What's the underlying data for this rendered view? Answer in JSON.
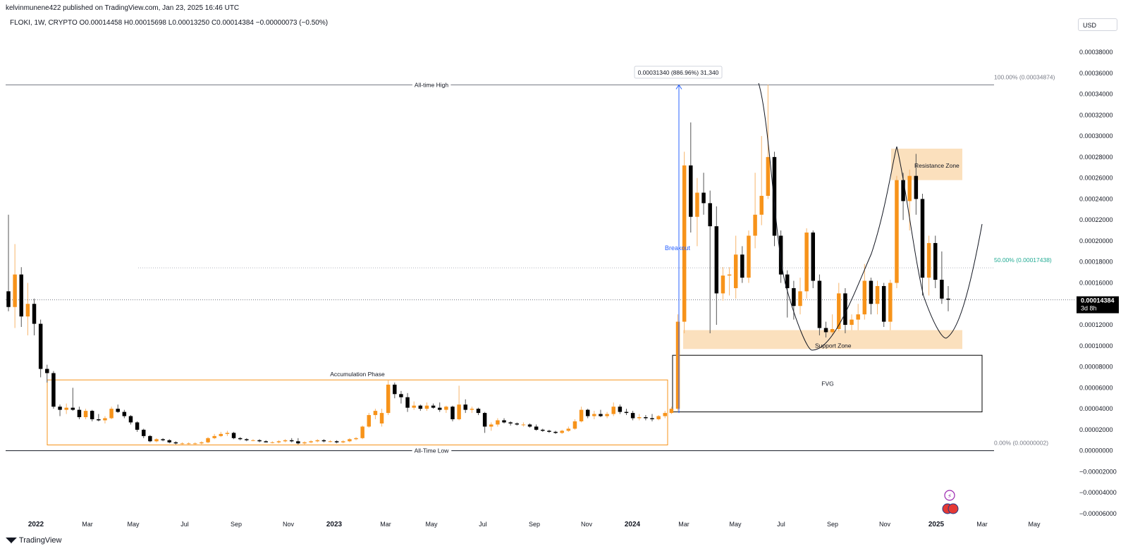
{
  "header": {
    "published": "kelvinmunene422 published on TradingView.com, Jan 23, 2025 16:46 UTC"
  },
  "legend": {
    "text": "FLOKI, 1W, CRYPTO  O0.00014458  H0.00015698  L0.00013250  C0.00014384  −0.00000073 (−0.50%)"
  },
  "currency": "USD",
  "branding": "TradingView",
  "colors": {
    "up": "#f7931a",
    "down": "#000000",
    "zone": "#fbe0bd",
    "green": "#22ab94",
    "blue": "#2962ff",
    "grid": "#e9ebef"
  },
  "price_label": {
    "value": "0.00014384",
    "countdown": "3d 8h"
  },
  "measure_label": "0.00031340 (886.96%) 31,340",
  "annotations": {
    "ath": "All-time High",
    "atl": "All-Time Low",
    "accumulation": "Accumulation Phase",
    "breakout": "Breakout",
    "resistance": "Resistance Zone",
    "support": "Support Zone",
    "fvg": "FVG",
    "fib100": "100.00% (0.00034874)",
    "fib50": "50.00% (0.00017438)",
    "fib0": "0.00% (0.00000002)"
  },
  "chart_data": {
    "type": "candlestick",
    "y_axis_ticks": [
      "0.00038000",
      "0.00036000",
      "0.00034000",
      "0.00032000",
      "0.00030000",
      "0.00028000",
      "0.00026000",
      "0.00024000",
      "0.00022000",
      "0.00020000",
      "0.00018000",
      "0.00016000",
      "0.00014000",
      "0.00012000",
      "0.00010000",
      "0.00008000",
      "0.00006000",
      "0.00004000",
      "0.00002000",
      "0.00000000",
      "−0.00002000",
      "−0.00004000",
      "−0.00006000"
    ],
    "ylim": [
      -6e-05,
      0.00038
    ],
    "x_axis_labels": [
      "2022",
      "Mar",
      "May",
      "Jul",
      "Sep",
      "Nov",
      "2023",
      "Mar",
      "May",
      "Jul",
      "Sep",
      "Nov",
      "2024",
      "Mar",
      "May",
      "Jul",
      "Sep",
      "Nov",
      "2025",
      "Mar",
      "May"
    ],
    "bold_x_labels": [
      "2022",
      "2023",
      "2024",
      "2025"
    ],
    "levels": {
      "all_time_high": 0.00034874,
      "all_time_low": 2e-08,
      "fib_50": 0.00017438,
      "current": 0.00014384
    },
    "zones": {
      "resistance": [
        0.000258,
        0.000288
      ],
      "support": [
        9.7e-05,
        0.000115
      ],
      "fvg": [
        3.7e-05,
        9.1e-05
      ],
      "accumulation": [
        5.5e-06,
        6.75e-05
      ]
    },
    "candles": [
      {
        "o": 0.000152,
        "h": 0.000225,
        "l": 0.000133,
        "c": 0.000137
      },
      {
        "o": 0.000137,
        "h": 0.000197,
        "l": 0.000117,
        "c": 0.000168
      },
      {
        "o": 0.000168,
        "h": 0.000175,
        "l": 0.000118,
        "c": 0.000128
      },
      {
        "o": 0.000128,
        "h": 0.00016,
        "l": 0.00011,
        "c": 0.00014
      },
      {
        "o": 0.00014,
        "h": 0.000145,
        "l": 0.00011,
        "c": 0.000121
      },
      {
        "o": 0.000121,
        "h": 0.000125,
        "l": 7e-05,
        "c": 7.8e-05
      },
      {
        "o": 7.8e-05,
        "h": 8.2e-05,
        "l": 6.5e-05,
        "c": 7.4e-05
      },
      {
        "o": 7.4e-05,
        "h": 7.6e-05,
        "l": 4e-05,
        "c": 4.2e-05
      },
      {
        "o": 4.2e-05,
        "h": 4.4e-05,
        "l": 3.3e-05,
        "c": 3.9e-05
      },
      {
        "o": 3.9e-05,
        "h": 4.5e-05,
        "l": 3.5e-05,
        "c": 4.1e-05
      },
      {
        "o": 4.1e-05,
        "h": 6e-05,
        "l": 3.8e-05,
        "c": 3.9e-05
      },
      {
        "o": 3.9e-05,
        "h": 4.2e-05,
        "l": 3e-05,
        "c": 3.2e-05
      },
      {
        "o": 3.2e-05,
        "h": 4e-05,
        "l": 3e-05,
        "c": 3.8e-05
      },
      {
        "o": 3.8e-05,
        "h": 3.9e-05,
        "l": 2.8e-05,
        "c": 3e-05
      },
      {
        "o": 3e-05,
        "h": 3.5e-05,
        "l": 2.8e-05,
        "c": 2.9e-05
      },
      {
        "o": 2.9e-05,
        "h": 3.3e-05,
        "l": 2.6e-05,
        "c": 3.1e-05
      },
      {
        "o": 3.1e-05,
        "h": 4.2e-05,
        "l": 3e-05,
        "c": 4e-05
      },
      {
        "o": 4e-05,
        "h": 4.4e-05,
        "l": 3.6e-05,
        "c": 3.7e-05
      },
      {
        "o": 3.7e-05,
        "h": 3.9e-05,
        "l": 3.1e-05,
        "c": 3.3e-05
      },
      {
        "o": 3.3e-05,
        "h": 3.4e-05,
        "l": 2.5e-05,
        "c": 2.7e-05
      },
      {
        "o": 2.7e-05,
        "h": 2.8e-05,
        "l": 1.8e-05,
        "c": 2e-05
      },
      {
        "o": 2e-05,
        "h": 2.1e-05,
        "l": 1.2e-05,
        "c": 1.4e-05
      },
      {
        "o": 1.4e-05,
        "h": 1.5e-05,
        "l": 8e-06,
        "c": 9e-06
      },
      {
        "o": 9e-06,
        "h": 1.2e-05,
        "l": 8e-06,
        "c": 1.1e-05
      },
      {
        "o": 1.1e-05,
        "h": 1.2e-05,
        "l": 9e-06,
        "c": 1e-05
      },
      {
        "o": 1e-05,
        "h": 1.1e-05,
        "l": 7e-06,
        "c": 8e-06
      },
      {
        "o": 8e-06,
        "h": 9e-06,
        "l": 6e-06,
        "c": 7e-06
      },
      {
        "o": 7e-06,
        "h": 8e-06,
        "l": 6e-06,
        "c": 7e-06
      },
      {
        "o": 7e-06,
        "h": 8e-06,
        "l": 6e-06,
        "c": 7e-06
      },
      {
        "o": 7e-06,
        "h": 8e-06,
        "l": 6e-06,
        "c": 7e-06
      },
      {
        "o": 7e-06,
        "h": 9e-06,
        "l": 6e-06,
        "c": 8e-06
      },
      {
        "o": 8e-06,
        "h": 1.3e-05,
        "l": 7e-06,
        "c": 1.2e-05
      },
      {
        "o": 1.2e-05,
        "h": 1.6e-05,
        "l": 1.1e-05,
        "c": 1.4e-05
      },
      {
        "o": 1.4e-05,
        "h": 1.8e-05,
        "l": 1.3e-05,
        "c": 1.6e-05
      },
      {
        "o": 1.6e-05,
        "h": 1.9e-05,
        "l": 1.4e-05,
        "c": 1.7e-05
      },
      {
        "o": 1.7e-05,
        "h": 1.8e-05,
        "l": 1.1e-05,
        "c": 1.2e-05
      },
      {
        "o": 1.2e-05,
        "h": 1.3e-05,
        "l": 1e-05,
        "c": 1.1e-05
      },
      {
        "o": 1.1e-05,
        "h": 1.2e-05,
        "l": 9e-06,
        "c": 1e-05
      },
      {
        "o": 1e-05,
        "h": 1.1e-05,
        "l": 9e-06,
        "c": 1e-05
      },
      {
        "o": 1e-05,
        "h": 1.1e-05,
        "l": 8e-06,
        "c": 9e-06
      },
      {
        "o": 9e-06,
        "h": 1e-05,
        "l": 8e-06,
        "c": 8e-06
      },
      {
        "o": 8e-06,
        "h": 9e-06,
        "l": 7e-06,
        "c": 8e-06
      },
      {
        "o": 8e-06,
        "h": 1e-05,
        "l": 7e-06,
        "c": 9e-06
      },
      {
        "o": 9e-06,
        "h": 1.1e-05,
        "l": 8e-06,
        "c": 1e-05
      },
      {
        "o": 1e-05,
        "h": 1.2e-05,
        "l": 8e-06,
        "c": 9e-06
      },
      {
        "o": 9e-06,
        "h": 1.2e-05,
        "l": 6e-06,
        "c": 7e-06
      },
      {
        "o": 7e-06,
        "h": 9e-06,
        "l": 6e-06,
        "c": 8e-06
      },
      {
        "o": 8e-06,
        "h": 1e-05,
        "l": 7e-06,
        "c": 9e-06
      },
      {
        "o": 9e-06,
        "h": 1.1e-05,
        "l": 8e-06,
        "c": 1e-05
      },
      {
        "o": 1e-05,
        "h": 1.1e-05,
        "l": 8e-06,
        "c": 9e-06
      },
      {
        "o": 9e-06,
        "h": 1e-05,
        "l": 8e-06,
        "c": 9e-06
      },
      {
        "o": 9e-06,
        "h": 1e-05,
        "l": 7e-06,
        "c": 8e-06
      },
      {
        "o": 8e-06,
        "h": 1e-05,
        "l": 7e-06,
        "c": 9e-06
      },
      {
        "o": 9e-06,
        "h": 1.2e-05,
        "l": 8e-06,
        "c": 1.1e-05
      },
      {
        "o": 1.1e-05,
        "h": 1.3e-05,
        "l": 1e-05,
        "c": 1.2e-05
      },
      {
        "o": 1.2e-05,
        "h": 2.4e-05,
        "l": 1.1e-05,
        "c": 2.3e-05
      },
      {
        "o": 2.3e-05,
        "h": 3.6e-05,
        "l": 2.2e-05,
        "c": 3.4e-05
      },
      {
        "o": 3.4e-05,
        "h": 4e-05,
        "l": 3e-05,
        "c": 3.8e-05
      },
      {
        "o": 2.6e-05,
        "h": 4e-05,
        "l": 2.3e-05,
        "c": 3.6e-05
      },
      {
        "o": 3.6e-05,
        "h": 6.7e-05,
        "l": 3.4e-05,
        "c": 6.3e-05
      },
      {
        "o": 6.3e-05,
        "h": 6.5e-05,
        "l": 5e-05,
        "c": 5.4e-05
      },
      {
        "o": 5.4e-05,
        "h": 5.7e-05,
        "l": 4.5e-05,
        "c": 5.1e-05
      },
      {
        "o": 5.1e-05,
        "h": 5.5e-05,
        "l": 3.7e-05,
        "c": 4.1e-05
      },
      {
        "o": 4.1e-05,
        "h": 4.7e-05,
        "l": 3.9e-05,
        "c": 4.3e-05
      },
      {
        "o": 4.3e-05,
        "h": 4.4e-05,
        "l": 3.8e-05,
        "c": 4e-05
      },
      {
        "o": 4e-05,
        "h": 4.6e-05,
        "l": 3.8e-05,
        "c": 4.3e-05
      },
      {
        "o": 4.3e-05,
        "h": 4.5e-05,
        "l": 4e-05,
        "c": 4.1e-05
      },
      {
        "o": 4.1e-05,
        "h": 4.6e-05,
        "l": 3.7e-05,
        "c": 3.9e-05
      },
      {
        "o": 3.9e-05,
        "h": 4.3e-05,
        "l": 3.6e-05,
        "c": 4.2e-05
      },
      {
        "o": 4.2e-05,
        "h": 4.3e-05,
        "l": 2.8e-05,
        "c": 3e-05
      },
      {
        "o": 3e-05,
        "h": 6.2e-05,
        "l": 2.9e-05,
        "c": 4.4e-05
      },
      {
        "o": 4.4e-05,
        "h": 4.9e-05,
        "l": 3.6e-05,
        "c": 3.9e-05
      },
      {
        "o": 3.9e-05,
        "h": 4.2e-05,
        "l": 3.6e-05,
        "c": 4e-05
      },
      {
        "o": 4e-05,
        "h": 4.1e-05,
        "l": 3.4e-05,
        "c": 3.6e-05
      },
      {
        "o": 3.6e-05,
        "h": 3.7e-05,
        "l": 1.7e-05,
        "c": 2.3e-05
      },
      {
        "o": 2.3e-05,
        "h": 2.7e-05,
        "l": 1.9e-05,
        "c": 2.5e-05
      },
      {
        "o": 2.5e-05,
        "h": 3.1e-05,
        "l": 2.3e-05,
        "c": 2.9e-05
      },
      {
        "o": 2.9e-05,
        "h": 3.1e-05,
        "l": 2.6e-05,
        "c": 2.7e-05
      },
      {
        "o": 2.7e-05,
        "h": 2.8e-05,
        "l": 2.4e-05,
        "c": 2.6e-05
      },
      {
        "o": 2.6e-05,
        "h": 2.7e-05,
        "l": 2.4e-05,
        "c": 2.5e-05
      },
      {
        "o": 2.5e-05,
        "h": 2.7e-05,
        "l": 2.3e-05,
        "c": 2.5e-05
      },
      {
        "o": 2.5e-05,
        "h": 2.6e-05,
        "l": 2.2e-05,
        "c": 2.3e-05
      },
      {
        "o": 2.3e-05,
        "h": 2.5e-05,
        "l": 1.9e-05,
        "c": 2e-05
      },
      {
        "o": 2e-05,
        "h": 2.1e-05,
        "l": 1.8e-05,
        "c": 1.9e-05
      },
      {
        "o": 1.9e-05,
        "h": 2e-05,
        "l": 1.7e-05,
        "c": 1.8e-05
      },
      {
        "o": 1.8e-05,
        "h": 1.9e-05,
        "l": 1.6e-05,
        "c": 1.7e-05
      },
      {
        "o": 1.7e-05,
        "h": 2e-05,
        "l": 1.6e-05,
        "c": 1.9e-05
      },
      {
        "o": 1.9e-05,
        "h": 2.3e-05,
        "l": 1.8e-05,
        "c": 2.1e-05
      },
      {
        "o": 2.1e-05,
        "h": 3e-05,
        "l": 2e-05,
        "c": 2.8e-05
      },
      {
        "o": 2.8e-05,
        "h": 4.2e-05,
        "l": 2.7e-05,
        "c": 3.9e-05
      },
      {
        "o": 3.9e-05,
        "h": 4e-05,
        "l": 3.1e-05,
        "c": 3.3e-05
      },
      {
        "o": 3.3e-05,
        "h": 3.8e-05,
        "l": 3e-05,
        "c": 3.5e-05
      },
      {
        "o": 3.5e-05,
        "h": 3.9e-05,
        "l": 3.2e-05,
        "c": 3.3e-05
      },
      {
        "o": 3.3e-05,
        "h": 3.7e-05,
        "l": 3.1e-05,
        "c": 3.5e-05
      },
      {
        "o": 3.5e-05,
        "h": 4.6e-05,
        "l": 3.3e-05,
        "c": 4.2e-05
      },
      {
        "o": 4.2e-05,
        "h": 4.4e-05,
        "l": 3.5e-05,
        "c": 3.7e-05
      },
      {
        "o": 3.7e-05,
        "h": 4e-05,
        "l": 3.4e-05,
        "c": 3.6e-05
      },
      {
        "o": 3.6e-05,
        "h": 3.8e-05,
        "l": 2.9e-05,
        "c": 3.1e-05
      },
      {
        "o": 3.1e-05,
        "h": 3.5e-05,
        "l": 2.9e-05,
        "c": 3.2e-05
      },
      {
        "o": 3.2e-05,
        "h": 3.4e-05,
        "l": 2.9e-05,
        "c": 3.1e-05
      },
      {
        "o": 3.1e-05,
        "h": 3.5e-05,
        "l": 2.8e-05,
        "c": 3e-05
      },
      {
        "o": 3e-05,
        "h": 3.4e-05,
        "l": 2.9e-05,
        "c": 3.3e-05
      },
      {
        "o": 3.3e-05,
        "h": 3.8e-05,
        "l": 3.1e-05,
        "c": 3.6e-05
      },
      {
        "o": 3.6e-05,
        "h": 4.2e-05,
        "l": 3.5e-05,
        "c": 4e-05
      },
      {
        "o": 4e-05,
        "h": 0.00013,
        "l": 3.8e-05,
        "c": 0.000123
      },
      {
        "o": 0.000123,
        "h": 0.000285,
        "l": 0.000112,
        "c": 0.000272
      },
      {
        "o": 0.000272,
        "h": 0.000313,
        "l": 0.000208,
        "c": 0.000223
      },
      {
        "o": 0.000223,
        "h": 0.00026,
        "l": 0.000195,
        "c": 0.000246
      },
      {
        "o": 0.000246,
        "h": 0.000265,
        "l": 0.000225,
        "c": 0.000236
      },
      {
        "o": 0.000236,
        "h": 0.000248,
        "l": 0.000112,
        "c": 0.000214
      },
      {
        "o": 0.000214,
        "h": 0.000233,
        "l": 0.00012,
        "c": 0.00015
      },
      {
        "o": 0.00015,
        "h": 0.000175,
        "l": 0.000143,
        "c": 0.000167
      },
      {
        "o": 0.000167,
        "h": 0.000175,
        "l": 0.000148,
        "c": 0.000168
      },
      {
        "o": 0.000155,
        "h": 0.000205,
        "l": 0.000145,
        "c": 0.000187
      },
      {
        "o": 0.000187,
        "h": 0.000195,
        "l": 0.00016,
        "c": 0.000165
      },
      {
        "o": 0.000165,
        "h": 0.00021,
        "l": 0.00016,
        "c": 0.000205
      },
      {
        "o": 0.000205,
        "h": 0.000265,
        "l": 0.000193,
        "c": 0.000225
      },
      {
        "o": 0.000225,
        "h": 0.0003,
        "l": 0.000215,
        "c": 0.000243
      },
      {
        "o": 0.000243,
        "h": 0.000349,
        "l": 0.00024,
        "c": 0.00028
      },
      {
        "o": 0.00028,
        "h": 0.000285,
        "l": 0.000195,
        "c": 0.000205
      },
      {
        "o": 0.000205,
        "h": 0.00021,
        "l": 0.00016,
        "c": 0.000168
      },
      {
        "o": 0.000168,
        "h": 0.000172,
        "l": 0.000127,
        "c": 0.000155
      },
      {
        "o": 0.000155,
        "h": 0.000162,
        "l": 0.000125,
        "c": 0.000138
      },
      {
        "o": 0.000138,
        "h": 0.000165,
        "l": 0.00013,
        "c": 0.000152
      },
      {
        "o": 0.000152,
        "h": 0.000212,
        "l": 0.000145,
        "c": 0.000208
      },
      {
        "o": 0.000208,
        "h": 0.00021,
        "l": 0.000155,
        "c": 0.000162
      },
      {
        "o": 0.000162,
        "h": 0.000168,
        "l": 0.00011,
        "c": 0.000117
      },
      {
        "o": 0.000117,
        "h": 0.000123,
        "l": 0.000108,
        "c": 0.000113
      },
      {
        "o": 0.000113,
        "h": 0.00013,
        "l": 0.00011,
        "c": 0.000116
      },
      {
        "o": 0.000116,
        "h": 0.00016,
        "l": 0.000114,
        "c": 0.00015
      },
      {
        "o": 0.00015,
        "h": 0.000155,
        "l": 0.000112,
        "c": 0.00012
      },
      {
        "o": 0.00012,
        "h": 0.00013,
        "l": 0.000115,
        "c": 0.000125
      },
      {
        "o": 0.000125,
        "h": 0.00014,
        "l": 0.000115,
        "c": 0.00013
      },
      {
        "o": 0.00013,
        "h": 0.000178,
        "l": 0.000125,
        "c": 0.000162
      },
      {
        "o": 0.000162,
        "h": 0.000165,
        "l": 0.00013,
        "c": 0.00014
      },
      {
        "o": 0.00014,
        "h": 0.000162,
        "l": 0.00013,
        "c": 0.000157
      },
      {
        "o": 0.000157,
        "h": 0.00016,
        "l": 0.000118,
        "c": 0.000123
      },
      {
        "o": 0.000123,
        "h": 0.000163,
        "l": 0.000115,
        "c": 0.00016
      },
      {
        "o": 0.00016,
        "h": 0.000262,
        "l": 0.000155,
        "c": 0.000258
      },
      {
        "o": 0.000258,
        "h": 0.000265,
        "l": 0.00022,
        "c": 0.000238
      },
      {
        "o": 0.000238,
        "h": 0.000268,
        "l": 0.00021,
        "c": 0.000262
      },
      {
        "o": 0.000262,
        "h": 0.000283,
        "l": 0.000225,
        "c": 0.00024
      },
      {
        "o": 0.00024,
        "h": 0.000245,
        "l": 0.000148,
        "c": 0.000165
      },
      {
        "o": 0.000165,
        "h": 0.000205,
        "l": 0.000148,
        "c": 0.000198
      },
      {
        "o": 0.000198,
        "h": 0.000205,
        "l": 0.000155,
        "c": 0.000163
      },
      {
        "o": 0.000163,
        "h": 0.00019,
        "l": 0.00014,
        "c": 0.000145
      },
      {
        "o": 0.000145,
        "h": 0.000157,
        "l": 0.000133,
        "c": 0.000144
      }
    ]
  }
}
